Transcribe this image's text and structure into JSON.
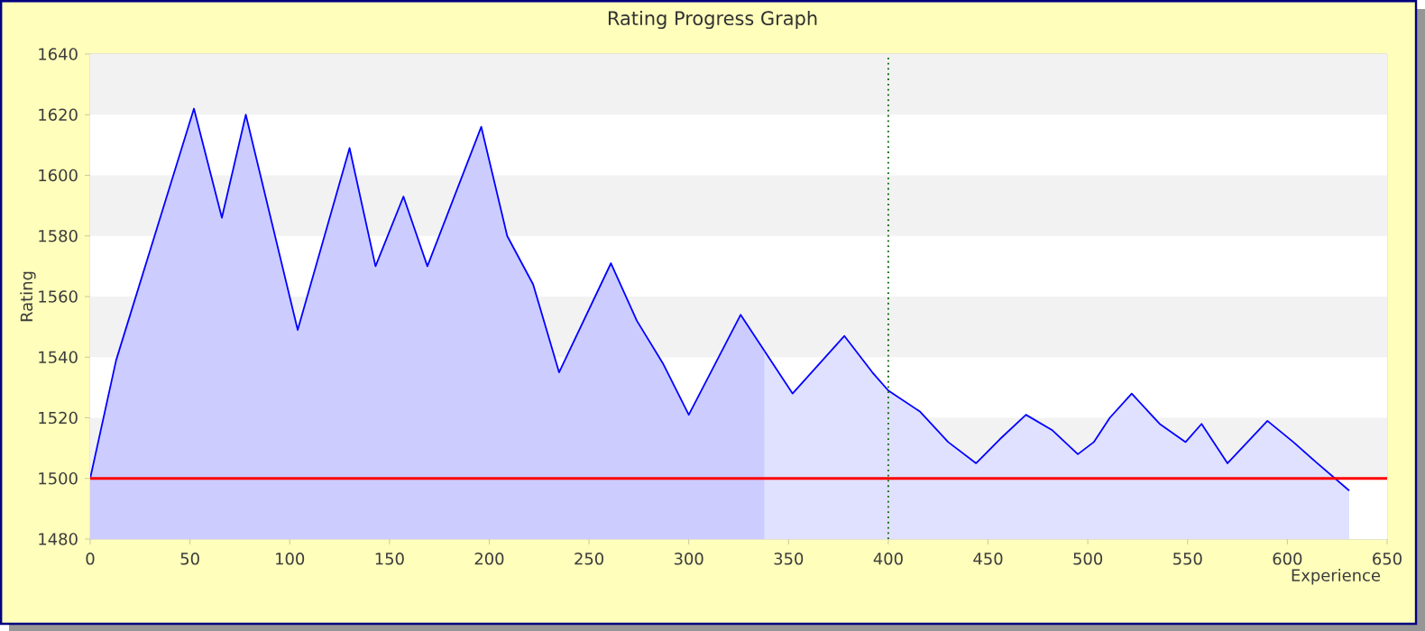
{
  "chart_data": {
    "type": "area",
    "title": "Rating Progress Graph",
    "xlabel": "Experience",
    "ylabel": "Rating",
    "xlim": [
      0,
      650
    ],
    "xticks": [
      0,
      50,
      100,
      150,
      200,
      250,
      300,
      350,
      400,
      450,
      500,
      550,
      600,
      650
    ],
    "ylim": [
      1480,
      1640
    ],
    "yticks": [
      1480,
      1500,
      1520,
      1540,
      1560,
      1580,
      1600,
      1620,
      1640
    ],
    "grid": "y",
    "series": [
      {
        "color": "#ccccff",
        "x": [
          0,
          13,
          52,
          66,
          78,
          104,
          130,
          143,
          157,
          169,
          196,
          209,
          222,
          235,
          261,
          274,
          287,
          300,
          326,
          338
        ],
        "values": [
          1500,
          1539,
          1622,
          1586,
          1620,
          1549,
          1609,
          1570,
          1593,
          1570,
          1616,
          1580,
          1564,
          1535,
          1571,
          1552,
          1538,
          1521,
          1554,
          1542
        ]
      },
      {
        "color": "#e0e0ff",
        "x": [
          338,
          352,
          378,
          392,
          400,
          416,
          430,
          444,
          456,
          469,
          482,
          495,
          503,
          511,
          522,
          536,
          549,
          557,
          570,
          590,
          603,
          615,
          631
        ],
        "values": [
          1542,
          1528,
          1547,
          1535,
          1529,
          1522,
          1512,
          1505,
          1513,
          1521,
          1516,
          1508,
          1512,
          1520,
          1528,
          1518,
          1512,
          1518,
          1505,
          1519,
          1512,
          1505,
          1496
        ]
      }
    ],
    "ref_lines": [
      {
        "axis": "y",
        "value": 1500,
        "color": "#ff0000",
        "line_style": "solid"
      },
      {
        "axis": "x",
        "value": 400,
        "color": "#006600",
        "line_style": "dotted"
      }
    ],
    "bands": [
      {
        "axis": "y",
        "from": 1620,
        "to": 1640,
        "color": "#f2f2f2"
      },
      {
        "axis": "y",
        "from": 1580,
        "to": 1600,
        "color": "#f2f2f2"
      },
      {
        "axis": "y",
        "from": 1540,
        "to": 1560,
        "color": "#f2f2f2"
      },
      {
        "axis": "y",
        "from": 1500,
        "to": 1520,
        "color": "#f2f2f2"
      }
    ]
  }
}
